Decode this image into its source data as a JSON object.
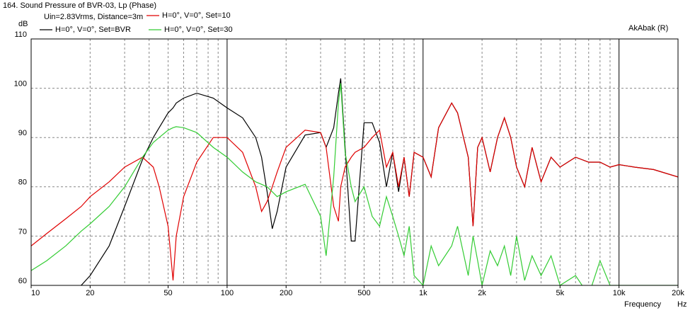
{
  "chart_data": {
    "type": "line",
    "title": "164. Sound Pressure of BVR-03, Lp (Phase)",
    "subtitle": "Uin=2.83Vrms, Distance=3m",
    "annotation": "AkAbak (R)",
    "y_label": "dB",
    "x_label": "Frequency",
    "x_unit": "Hz",
    "log_x": true,
    "grid": true,
    "xlim": [
      10,
      20000
    ],
    "ylim": [
      60,
      110
    ],
    "xticks": [
      10,
      20,
      50,
      100,
      200,
      500,
      {
        "value": 1000,
        "label": "1k"
      },
      {
        "value": 2000,
        "label": "2k"
      },
      {
        "value": 5000,
        "label": "5k"
      },
      {
        "value": 10000,
        "label": "10k"
      },
      {
        "value": 20000,
        "label": "20k"
      }
    ],
    "xgrid": [
      20,
      30,
      40,
      50,
      60,
      70,
      80,
      90,
      100,
      200,
      300,
      400,
      500,
      600,
      700,
      800,
      900,
      1000,
      2000,
      3000,
      4000,
      5000,
      6000,
      7000,
      8000,
      9000,
      10000
    ],
    "yticks": [
      60,
      70,
      80,
      90,
      100,
      110
    ],
    "x": [
      10,
      12,
      15,
      18,
      20,
      25,
      30,
      37,
      42,
      45,
      50,
      53,
      55,
      60,
      70,
      85,
      100,
      120,
      140,
      150,
      160,
      170,
      180,
      200,
      250,
      300,
      320,
      350,
      370,
      380,
      400,
      430,
      450,
      500,
      550,
      600,
      650,
      700,
      750,
      800,
      850,
      900,
      1000,
      1100,
      1200,
      1400,
      1500,
      1700,
      1800,
      1900,
      2000,
      2200,
      2400,
      2600,
      2800,
      3000,
      3300,
      3600,
      4000,
      4500,
      5000,
      6000,
      7000,
      8000,
      9000,
      10000,
      12000,
      15000,
      20000
    ],
    "series": [
      {
        "name": "H=0°, V=0°, Set=BVR",
        "color": "#000000",
        "values": [
          null,
          null,
          null,
          60,
          62,
          68,
          76,
          85.5,
          90,
          92,
          95,
          96,
          97,
          98,
          99,
          98,
          96,
          94,
          90,
          86,
          79,
          71.5,
          75,
          84,
          90.5,
          91,
          88,
          92,
          99,
          102,
          88,
          69,
          69,
          93,
          93,
          89,
          80,
          87,
          79,
          86,
          78,
          87,
          86,
          82,
          92,
          97,
          95,
          86,
          72,
          88,
          90,
          83,
          90,
          94,
          90,
          84,
          80,
          88,
          81,
          86,
          84,
          86,
          85,
          85,
          84,
          84.5,
          84,
          83.5,
          82
        ]
      },
      {
        "name": "H=0°, V=0°, Set=10",
        "color": "#e00000",
        "values": [
          68,
          70.5,
          73.5,
          76,
          78,
          81,
          84,
          86,
          84,
          80,
          72,
          61,
          70,
          78,
          85,
          90,
          90,
          87,
          80,
          75,
          77,
          80,
          83,
          88,
          91.5,
          91,
          88,
          76,
          73,
          80,
          84,
          86,
          87,
          88,
          90,
          91.5,
          84,
          87,
          80,
          86,
          78,
          87,
          86,
          82,
          92,
          97,
          95,
          86,
          72,
          88,
          90,
          83,
          90,
          94,
          90,
          84,
          80,
          88,
          81,
          86,
          84,
          86,
          85,
          85,
          84,
          84.5,
          84,
          83.5,
          82
        ]
      },
      {
        "name": "H=0°, V=0°, Set=30",
        "color": "#33cc33",
        "values": [
          63,
          65,
          68,
          71,
          72.5,
          76,
          80,
          86,
          89,
          90,
          91.5,
          92,
          92.2,
          92,
          91,
          88,
          86,
          83,
          81,
          80.5,
          80,
          79,
          78,
          79,
          80.5,
          74,
          66,
          82,
          97,
          101,
          87,
          80,
          77,
          80,
          74,
          72,
          78,
          74,
          70,
          66,
          72,
          62,
          60,
          68,
          64,
          68,
          72,
          62,
          70,
          65,
          60,
          67,
          64,
          68,
          62,
          70,
          61,
          66,
          62,
          66,
          60,
          62,
          58,
          65,
          60,
          60,
          60,
          60,
          60
        ]
      }
    ]
  }
}
